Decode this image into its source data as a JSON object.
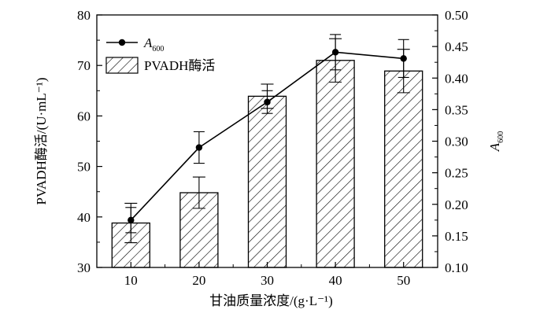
{
  "chart_data": {
    "type": "bar",
    "categories": [
      "10",
      "20",
      "30",
      "40",
      "50"
    ],
    "series": [
      {
        "name": "PVADH酶活",
        "kind": "bar",
        "axis": "left",
        "pattern": "diagonal-hatch",
        "values": [
          38.8,
          44.8,
          63.9,
          71.0,
          68.9
        ],
        "errors": [
          3.9,
          3.1,
          2.4,
          4.3,
          4.3
        ]
      },
      {
        "name": "A600",
        "name_main": "A",
        "name_sub": "600",
        "kind": "line",
        "axis": "right",
        "marker": "circle",
        "values": [
          0.175,
          0.29,
          0.362,
          0.441,
          0.431
        ],
        "errors": [
          0.02,
          0.025,
          0.018,
          0.028,
          0.03
        ]
      }
    ],
    "xlabel": "甘油质量浓度/(g·L⁻¹)",
    "ylabel": "PVADH酶活/(U·mL⁻¹)",
    "y2label_main": "A",
    "y2label_sub": "600",
    "ylim": [
      30,
      80
    ],
    "yticks": [
      "30",
      "40",
      "50",
      "60",
      "70",
      "80"
    ],
    "y2lim": [
      0.1,
      0.5
    ],
    "y2ticks": [
      "0.10",
      "0.15",
      "0.20",
      "0.25",
      "0.30",
      "0.35",
      "0.40",
      "0.45",
      "0.50"
    ],
    "legend_position": "top-left",
    "grid": false,
    "colors": {
      "line": "#000000",
      "bar_fill": "#ffffff",
      "hatch": "#000000"
    }
  }
}
